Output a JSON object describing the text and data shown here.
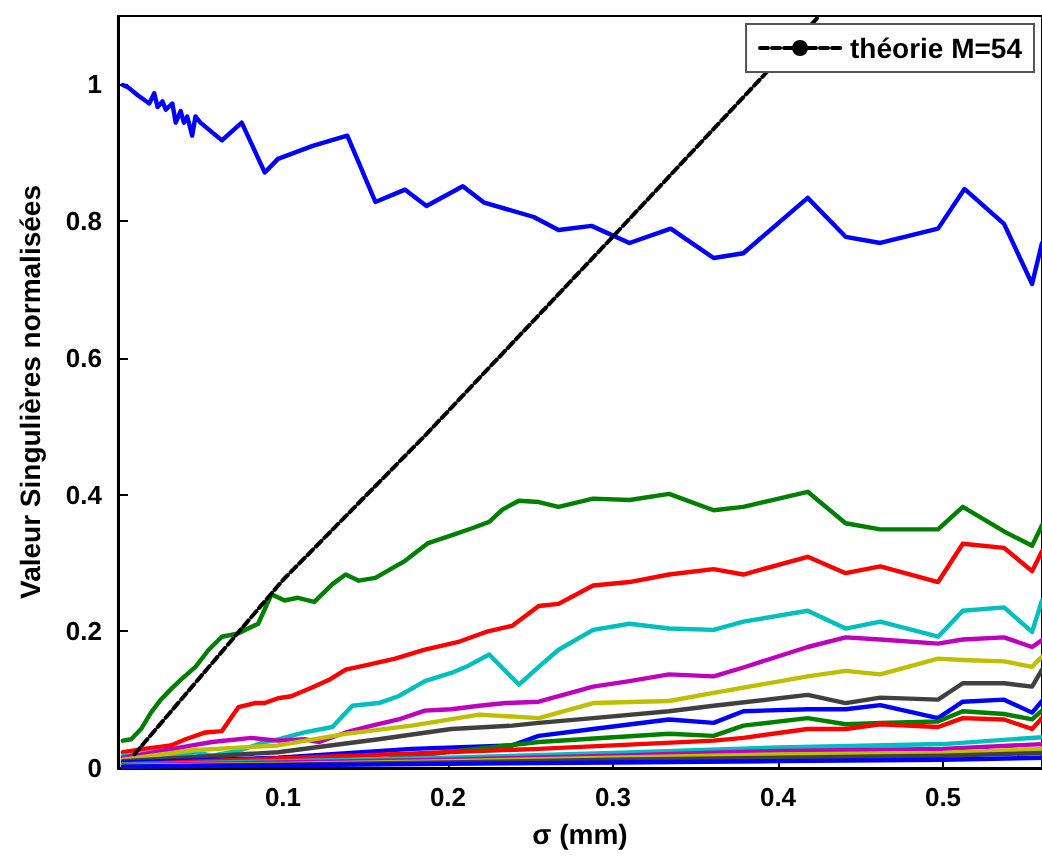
{
  "chart_data": {
    "type": "line",
    "xlabel": "σ (mm)",
    "ylabel": "Valeur Singulières normalisées",
    "xlim": [
      0,
      0.56
    ],
    "ylim": [
      0,
      1.1
    ],
    "xticks": [
      0.1,
      0.2,
      0.3,
      0.4,
      0.5
    ],
    "yticks": [
      0,
      0.2,
      0.4,
      0.6,
      0.8,
      1
    ],
    "grid": false,
    "legend": "top right",
    "marker": "none",
    "series": [
      {
        "color": "#0000ff",
        "x": [
          0.003,
          0.006,
          0.012,
          0.019,
          0.022,
          0.024,
          0.027,
          0.029,
          0.033,
          0.035,
          0.038,
          0.04,
          0.042,
          0.045,
          0.047,
          0.05,
          0.063,
          0.075,
          0.089,
          0.097,
          0.118,
          0.139,
          0.156,
          0.174,
          0.187,
          0.209,
          0.222,
          0.252,
          0.267,
          0.287,
          0.31,
          0.335,
          0.361,
          0.379,
          0.418,
          0.441,
          0.462,
          0.497,
          0.513,
          0.537,
          0.554,
          0.56
        ],
        "values": [
          0.999,
          0.996,
          0.984,
          0.972,
          0.987,
          0.967,
          0.975,
          0.963,
          0.972,
          0.944,
          0.961,
          0.944,
          0.953,
          0.925,
          0.953,
          0.944,
          0.918,
          0.944,
          0.871,
          0.891,
          0.91,
          0.925,
          0.828,
          0.846,
          0.822,
          0.851,
          0.827,
          0.806,
          0.787,
          0.793,
          0.768,
          0.789,
          0.746,
          0.753,
          0.834,
          0.777,
          0.768,
          0.789,
          0.847,
          0.796,
          0.708,
          0.768
        ]
      },
      {
        "color": "#008000",
        "x": [
          0.003,
          0.008,
          0.014,
          0.02,
          0.026,
          0.032,
          0.038,
          0.047,
          0.055,
          0.063,
          0.073,
          0.085,
          0.093,
          0.101,
          0.109,
          0.119,
          0.13,
          0.138,
          0.146,
          0.156,
          0.174,
          0.188,
          0.203,
          0.215,
          0.225,
          0.233,
          0.243,
          0.255,
          0.267,
          0.288,
          0.31,
          0.334,
          0.361,
          0.379,
          0.418,
          0.441,
          0.462,
          0.497,
          0.512,
          0.537,
          0.554,
          0.56
        ],
        "values": [
          0.04,
          0.042,
          0.057,
          0.081,
          0.1,
          0.115,
          0.129,
          0.148,
          0.173,
          0.192,
          0.197,
          0.211,
          0.254,
          0.245,
          0.249,
          0.243,
          0.269,
          0.283,
          0.274,
          0.278,
          0.303,
          0.329,
          0.341,
          0.351,
          0.36,
          0.378,
          0.391,
          0.389,
          0.382,
          0.394,
          0.392,
          0.401,
          0.377,
          0.382,
          0.404,
          0.358,
          0.349,
          0.349,
          0.382,
          0.346,
          0.325,
          0.355
        ]
      },
      {
        "color": "#ff0000",
        "x": [
          0.003,
          0.016,
          0.032,
          0.041,
          0.053,
          0.063,
          0.073,
          0.083,
          0.089,
          0.097,
          0.105,
          0.118,
          0.128,
          0.138,
          0.15,
          0.168,
          0.186,
          0.207,
          0.223,
          0.239,
          0.255,
          0.267,
          0.288,
          0.31,
          0.334,
          0.361,
          0.379,
          0.418,
          0.441,
          0.462,
          0.497,
          0.512,
          0.537,
          0.554,
          0.56
        ],
        "values": [
          0.023,
          0.028,
          0.033,
          0.042,
          0.052,
          0.054,
          0.089,
          0.095,
          0.095,
          0.102,
          0.105,
          0.118,
          0.129,
          0.144,
          0.15,
          0.16,
          0.173,
          0.185,
          0.199,
          0.208,
          0.237,
          0.24,
          0.267,
          0.272,
          0.283,
          0.291,
          0.283,
          0.309,
          0.285,
          0.295,
          0.272,
          0.328,
          0.322,
          0.288,
          0.317
        ]
      },
      {
        "color": "#00bfbf",
        "x": [
          0.003,
          0.036,
          0.047,
          0.057,
          0.073,
          0.089,
          0.097,
          0.113,
          0.13,
          0.142,
          0.158,
          0.17,
          0.186,
          0.202,
          0.211,
          0.225,
          0.243,
          0.255,
          0.267,
          0.288,
          0.31,
          0.334,
          0.361,
          0.379,
          0.418,
          0.441,
          0.462,
          0.497,
          0.512,
          0.537,
          0.554,
          0.56
        ],
        "values": [
          0.018,
          0.018,
          0.023,
          0.018,
          0.025,
          0.038,
          0.042,
          0.052,
          0.06,
          0.091,
          0.095,
          0.105,
          0.127,
          0.139,
          0.148,
          0.166,
          0.122,
          0.148,
          0.173,
          0.202,
          0.211,
          0.204,
          0.202,
          0.214,
          0.23,
          0.204,
          0.214,
          0.192,
          0.23,
          0.235,
          0.199,
          0.245
        ]
      },
      {
        "color": "#bf00bf",
        "x": [
          0.003,
          0.045,
          0.057,
          0.081,
          0.097,
          0.113,
          0.122,
          0.138,
          0.154,
          0.17,
          0.186,
          0.202,
          0.219,
          0.235,
          0.255,
          0.288,
          0.31,
          0.334,
          0.361,
          0.379,
          0.418,
          0.441,
          0.462,
          0.497,
          0.512,
          0.537,
          0.554,
          0.56
        ],
        "values": [
          0.015,
          0.033,
          0.038,
          0.044,
          0.04,
          0.042,
          0.038,
          0.052,
          0.062,
          0.071,
          0.084,
          0.086,
          0.091,
          0.095,
          0.097,
          0.119,
          0.127,
          0.137,
          0.134,
          0.147,
          0.177,
          0.191,
          0.188,
          0.182,
          0.188,
          0.191,
          0.177,
          0.187
        ]
      },
      {
        "color": "#bfbf00",
        "x": [
          0.003,
          0.045,
          0.097,
          0.138,
          0.178,
          0.219,
          0.255,
          0.288,
          0.334,
          0.361,
          0.418,
          0.441,
          0.462,
          0.497,
          0.512,
          0.537,
          0.554,
          0.56
        ],
        "values": [
          0.012,
          0.026,
          0.033,
          0.05,
          0.062,
          0.078,
          0.073,
          0.095,
          0.098,
          0.11,
          0.134,
          0.142,
          0.137,
          0.16,
          0.158,
          0.156,
          0.148,
          0.163
        ]
      },
      {
        "color": "#404040",
        "x": [
          0.003,
          0.097,
          0.158,
          0.202,
          0.239,
          0.255,
          0.288,
          0.334,
          0.361,
          0.418,
          0.441,
          0.462,
          0.497,
          0.512,
          0.537,
          0.554,
          0.56
        ],
        "values": [
          0.01,
          0.023,
          0.042,
          0.057,
          0.062,
          0.066,
          0.073,
          0.083,
          0.091,
          0.107,
          0.095,
          0.103,
          0.1,
          0.124,
          0.124,
          0.119,
          0.144
        ]
      },
      {
        "color": "#0000ff",
        "x": [
          0.003,
          0.097,
          0.178,
          0.239,
          0.255,
          0.288,
          0.334,
          0.361,
          0.379,
          0.418,
          0.441,
          0.462,
          0.497,
          0.512,
          0.537,
          0.554,
          0.56
        ],
        "values": [
          0.008,
          0.015,
          0.028,
          0.033,
          0.047,
          0.057,
          0.071,
          0.066,
          0.083,
          0.086,
          0.086,
          0.092,
          0.073,
          0.097,
          0.1,
          0.081,
          0.098
        ]
      },
      {
        "color": "#008000",
        "x": [
          0.003,
          0.158,
          0.255,
          0.334,
          0.361,
          0.379,
          0.418,
          0.441,
          0.462,
          0.497,
          0.512,
          0.537,
          0.554,
          0.56
        ],
        "values": [
          0.006,
          0.012,
          0.038,
          0.05,
          0.047,
          0.062,
          0.073,
          0.064,
          0.066,
          0.068,
          0.083,
          0.079,
          0.071,
          0.084
        ]
      },
      {
        "color": "#ff0000",
        "x": [
          0.003,
          0.097,
          0.255,
          0.361,
          0.379,
          0.418,
          0.441,
          0.462,
          0.497,
          0.512,
          0.537,
          0.554,
          0.56
        ],
        "values": [
          0.005,
          0.014,
          0.028,
          0.04,
          0.044,
          0.057,
          0.057,
          0.064,
          0.06,
          0.073,
          0.071,
          0.057,
          0.073
        ]
      },
      {
        "color": "#00bfbf",
        "x": [
          0.003,
          0.1,
          0.2,
          0.3,
          0.4,
          0.5,
          0.56
        ],
        "values": [
          0.005,
          0.01,
          0.015,
          0.022,
          0.03,
          0.035,
          0.045
        ]
      },
      {
        "color": "#bf00bf",
        "x": [
          0.003,
          0.1,
          0.2,
          0.3,
          0.4,
          0.5,
          0.56
        ],
        "values": [
          0.004,
          0.008,
          0.012,
          0.018,
          0.025,
          0.028,
          0.035
        ]
      },
      {
        "color": "#bfbf00",
        "x": [
          0.003,
          0.1,
          0.2,
          0.3,
          0.4,
          0.5,
          0.56
        ],
        "values": [
          0.003,
          0.006,
          0.01,
          0.015,
          0.02,
          0.022,
          0.028
        ]
      },
      {
        "color": "#404040",
        "x": [
          0.003,
          0.1,
          0.2,
          0.3,
          0.4,
          0.5,
          0.56
        ],
        "values": [
          0.002,
          0.005,
          0.008,
          0.012,
          0.015,
          0.018,
          0.022
        ]
      },
      {
        "color": "#0000ff",
        "x": [
          0.003,
          0.1,
          0.2,
          0.3,
          0.4,
          0.5,
          0.56
        ],
        "values": [
          0.002,
          0.004,
          0.006,
          0.008,
          0.01,
          0.012,
          0.015
        ]
      },
      {
        "name": "théorie M=54",
        "color": "#000000",
        "line_style": "dashed",
        "x": [
          0.01,
          0.1,
          0.186,
          0.301,
          0.425
        ],
        "values": [
          0.02,
          0.275,
          0.486,
          0.78,
          1.1
        ]
      }
    ]
  }
}
